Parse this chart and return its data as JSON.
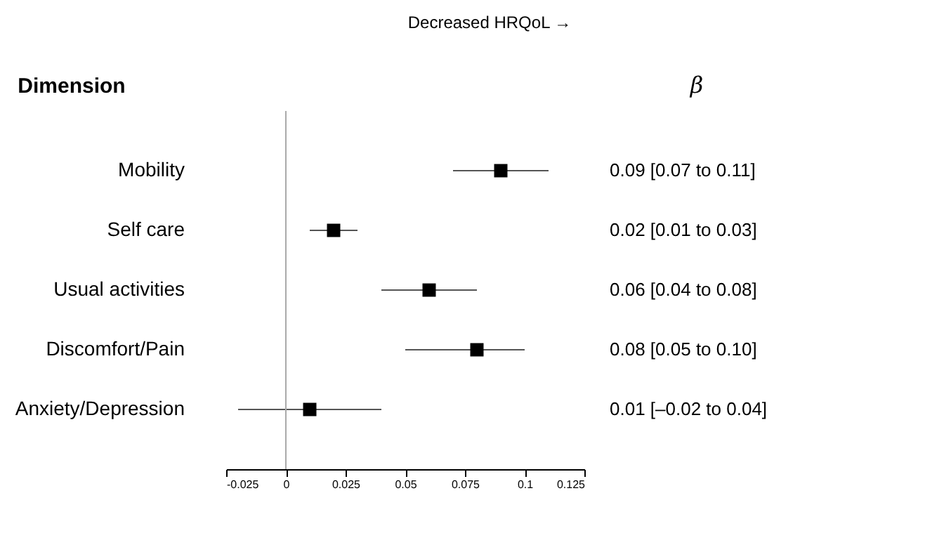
{
  "chart_data": {
    "type": "scatter",
    "orientation": "horizontal",
    "title": "Decreased HRQoL →",
    "ylabel": "Dimension",
    "annotations": [
      "β",
      "0.09 [0.07 to 0.11]",
      "0.02 [0.01 to 0.03]",
      "0.06 [0.04 to 0.08]",
      "0.08 [0.05 to 0.10]",
      "0.01 [–0.02 to 0.04]"
    ],
    "categories": [
      "Mobility",
      "Self care",
      "Usual activities",
      "Discomfort/Pain",
      "Anxiety/Depression"
    ],
    "values": [
      0.09,
      0.02,
      0.06,
      0.08,
      0.01
    ],
    "errors": [
      [
        0.07,
        0.11
      ],
      [
        0.01,
        0.03
      ],
      [
        0.04,
        0.08
      ],
      [
        0.05,
        0.1
      ],
      [
        -0.02,
        0.04
      ]
    ],
    "color": "#000000",
    "marker": "square",
    "grid": false,
    "xlim": [
      -0.025,
      0.125
    ],
    "xticks": [
      -0.025,
      0,
      0.025,
      0.05,
      0.075,
      0.1,
      0.125
    ],
    "ref_lines": [
      {
        "axis": "x",
        "value": 0,
        "color": "#aaaaaa"
      }
    ]
  }
}
